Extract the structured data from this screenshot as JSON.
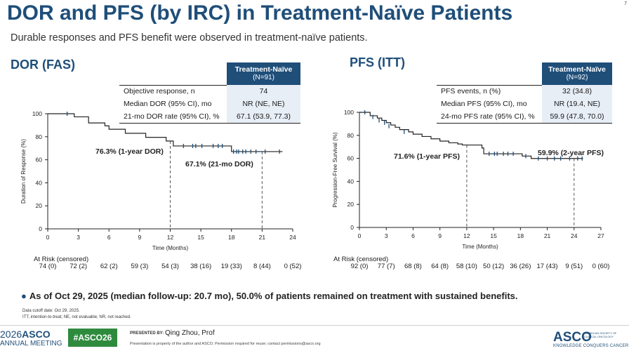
{
  "slide": {
    "title": "DOR and PFS (by IRC) in Treatment-Naïve Patients",
    "page_number": "7",
    "subtitle": "Durable responses and PFS benefit were observed in treatment-naïve patients.",
    "footnote": "As of Oct 29, 2025 (median follow-up: 20.7 mo), 50.0% of patients remained on treatment with sustained benefits.",
    "data_cutoff": "Data cutoff date: Oct 29, 2025.",
    "abbreviations": "ITT, intention-to-treat; NE, not evaluable; NR, not reached."
  },
  "dor": {
    "section_title": "DOR (FAS)",
    "table_header": "Treatment-Naïve",
    "table_n": "(N=91)",
    "rows": [
      {
        "label": "Objective response, n",
        "value": "74"
      },
      {
        "label": "Median DOR (95% CI), mo",
        "value": "NR (NE, NE)"
      },
      {
        "label": "21-mo DOR rate (95% CI), %",
        "value": "67.1 (53.9, 77.3)"
      }
    ],
    "at_risk_label": "At Risk (censored)",
    "at_risk": [
      "74 (0)",
      "72 (2)",
      "62 (2)",
      "59 (3)",
      "54 (3)",
      "38 (16)",
      "19 (33)",
      "8 (44)",
      "0 (52)"
    ]
  },
  "pfs": {
    "section_title": "PFS (ITT)",
    "table_header": "Treatment-Naïve",
    "table_n": "(N=92)",
    "rows": [
      {
        "label": "PFS events, n (%)",
        "value": "32 (34.8)"
      },
      {
        "label": "Median PFS (95% CI), mo",
        "value": "NR (19.4, NE)"
      },
      {
        "label": "24-mo PFS rate (95% CI), %",
        "value": "59.9 (47.8, 70.0)"
      }
    ],
    "at_risk_label": "At Risk (censored)",
    "at_risk": [
      "92 (0)",
      "77 (7)",
      "68 (8)",
      "64 (8)",
      "58 (10)",
      "50 (12)",
      "36 (26)",
      "17 (43)",
      "9 (51)",
      "0 (60)"
    ]
  },
  "chart_data": [
    {
      "type": "line",
      "xlabel": "Time (Months)",
      "ylabel": "Duration of Response (%)",
      "xlim": [
        0,
        24
      ],
      "ylim": [
        0,
        100
      ],
      "xticks": [
        0,
        3,
        6,
        9,
        12,
        15,
        18,
        21,
        24
      ],
      "yticks": [
        0,
        20,
        40,
        60,
        80,
        100
      ],
      "series": [
        {
          "steps": [
            [
              0,
              100
            ],
            [
              2.3,
              100
            ],
            [
              2.6,
              97.3
            ],
            [
              3.8,
              97.3
            ],
            [
              4,
              92
            ],
            [
              5.3,
              92
            ],
            [
              5.6,
              89.5
            ],
            [
              6,
              86.5
            ],
            [
              7.3,
              86.5
            ],
            [
              7.6,
              83
            ],
            [
              9.3,
              83
            ],
            [
              9.6,
              79.5
            ],
            [
              11.3,
              79.5
            ],
            [
              11.6,
              76.3
            ],
            [
              12,
              76.3
            ],
            [
              12.3,
              72
            ],
            [
              17.8,
              72
            ],
            [
              18,
              67.1
            ],
            [
              23,
              67.1
            ]
          ],
          "censored": [
            [
              1.9,
              100
            ],
            [
              13.3,
              72
            ],
            [
              14.2,
              72
            ],
            [
              14.5,
              72
            ],
            [
              15.1,
              72
            ],
            [
              16.2,
              72
            ],
            [
              16.7,
              72
            ],
            [
              17.1,
              72
            ],
            [
              18.2,
              67.1
            ],
            [
              18.5,
              67.1
            ],
            [
              18.7,
              67.1
            ],
            [
              19.1,
              67.1
            ],
            [
              19.4,
              67.1
            ],
            [
              19.9,
              67.1
            ],
            [
              20.4,
              67.1
            ],
            [
              21.3,
              67.1
            ],
            [
              22.7,
              67.1
            ]
          ]
        }
      ],
      "reference_lines_x": [
        12,
        21
      ],
      "annotations": [
        "76.3% (1-year DOR)",
        "67.1% (21-mo DOR)"
      ]
    },
    {
      "type": "line",
      "xlabel": "Time (Months)",
      "ylabel": "Progression-Free Survival (%)",
      "xlim": [
        0,
        27
      ],
      "ylim": [
        0,
        100
      ],
      "xticks": [
        0,
        3,
        6,
        9,
        12,
        15,
        18,
        21,
        24,
        27
      ],
      "yticks": [
        0,
        20,
        40,
        60,
        80,
        100
      ],
      "series": [
        {
          "steps": [
            [
              0,
              100
            ],
            [
              1,
              100
            ],
            [
              1.2,
              97
            ],
            [
              2,
              95
            ],
            [
              2.5,
              93
            ],
            [
              3,
              91
            ],
            [
              3.5,
              89
            ],
            [
              4,
              87
            ],
            [
              4.5,
              85
            ],
            [
              5.5,
              83
            ],
            [
              6,
              81
            ],
            [
              7,
              79
            ],
            [
              8,
              77
            ],
            [
              9,
              75
            ],
            [
              10,
              73.5
            ],
            [
              11,
              72.5
            ],
            [
              11.5,
              71.6
            ],
            [
              12,
              71.6
            ],
            [
              13.5,
              71.6
            ],
            [
              13.7,
              69
            ],
            [
              13.9,
              64
            ],
            [
              18,
              64
            ],
            [
              18.2,
              62
            ],
            [
              19,
              62
            ],
            [
              19.2,
              59.9
            ],
            [
              25,
              59.9
            ]
          ],
          "censored": [
            [
              0.6,
              100
            ],
            [
              1.5,
              96
            ],
            [
              2.2,
              93
            ],
            [
              2.8,
              91
            ],
            [
              3.3,
              88
            ],
            [
              5,
              83
            ],
            [
              14.5,
              64
            ],
            [
              15.1,
              64
            ],
            [
              15.4,
              64
            ],
            [
              16.1,
              64
            ],
            [
              16.6,
              64
            ],
            [
              17.2,
              64
            ],
            [
              18.6,
              62
            ],
            [
              20,
              59.9
            ],
            [
              21,
              59.9
            ],
            [
              21.8,
              59.9
            ],
            [
              22.5,
              59.9
            ],
            [
              23.5,
              59.9
            ],
            [
              24.4,
              59.9
            ],
            [
              24.9,
              59.9
            ]
          ]
        }
      ],
      "reference_lines_x": [
        12,
        24
      ],
      "annotations": [
        "71.6% (1-year PFS)",
        "59.9% (2-year PFS)"
      ]
    }
  ],
  "footer": {
    "meeting_year": "2026",
    "meeting_name": "ASCO",
    "meeting_sub": "ANNUAL MEETING",
    "hashtag": "#ASCO26",
    "presented_by": "PRESENTED BY:",
    "presenter": "Qing Zhou, Prof",
    "permission": "Presentation is property of the author and ASCO. Permission required for reuse; contact permissions@asco.org",
    "asco_logo": "ASCO",
    "asco_logo_sub": "AMERICAN SOCIETY OF CLINICAL ONCOLOGY",
    "asco_tagline": "KNOWLEDGE CONQUERS CANCER"
  },
  "colors": {
    "brand_blue": "#1f4e79",
    "curve": "#222222",
    "censor_tick": "#1f4e79",
    "table_value_bg": "#e8eef6",
    "hashtag_green": "#2e8b3e"
  }
}
